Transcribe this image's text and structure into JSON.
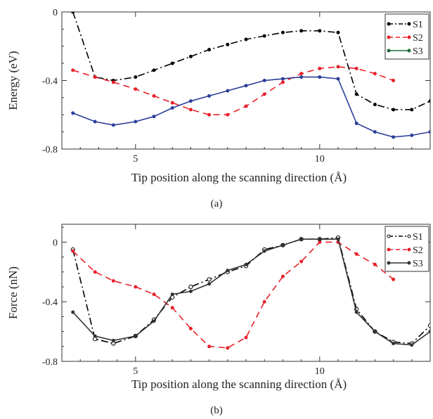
{
  "chart_data": [
    {
      "type": "line",
      "panel_label": "(a)",
      "xlabel": "Tip position along the scanning direction (Å)",
      "ylabel": "Energy (eV)",
      "xlim": [
        3.0,
        13.0
      ],
      "ylim": [
        -0.8,
        0.0
      ],
      "xticks": [
        5,
        10
      ],
      "yticks": [
        0,
        -0.4,
        -0.8
      ],
      "ytick_labels": [
        "0",
        "-0.4",
        "-0.8"
      ],
      "legend_position": "top-right",
      "series": [
        {
          "name": "S1",
          "color": "#000000",
          "dash": "dashdot",
          "marker": "dot",
          "x": [
            3.3,
            3.9,
            4.4,
            5.0,
            5.5,
            6.0,
            6.5,
            7.0,
            7.5,
            8.0,
            8.5,
            9.0,
            9.5,
            10.0,
            10.5,
            11.0,
            11.5,
            12.0,
            12.5,
            13.0
          ],
          "y": [
            0.0,
            -0.38,
            -0.4,
            -0.38,
            -0.34,
            -0.3,
            -0.26,
            -0.22,
            -0.19,
            -0.16,
            -0.14,
            -0.12,
            -0.11,
            -0.11,
            -0.12,
            -0.48,
            -0.54,
            -0.57,
            -0.57,
            -0.52
          ]
        },
        {
          "name": "S2",
          "color": "#e8202a",
          "dash": "dash",
          "marker": "dot",
          "x": [
            3.3,
            3.9,
            4.4,
            5.0,
            5.5,
            6.0,
            6.5,
            7.0,
            7.5,
            8.0,
            8.5,
            9.0,
            9.5,
            10.0,
            10.5,
            11.0,
            11.5,
            12.0
          ],
          "y": [
            -0.34,
            -0.38,
            -0.41,
            -0.45,
            -0.49,
            -0.53,
            -0.57,
            -0.6,
            -0.6,
            -0.55,
            -0.48,
            -0.41,
            -0.36,
            -0.33,
            -0.32,
            -0.33,
            -0.36,
            -0.4
          ]
        },
        {
          "name": "S3",
          "color": "#1f6b3a",
          "line_color": "#2b3f9a",
          "dash": "solid",
          "marker": "dot",
          "x": [
            3.3,
            3.9,
            4.4,
            5.0,
            5.5,
            6.0,
            6.5,
            7.0,
            7.5,
            8.0,
            8.5,
            9.0,
            9.5,
            10.0,
            10.5,
            11.0,
            11.5,
            12.0,
            12.5,
            13.0
          ],
          "y": [
            -0.59,
            -0.64,
            -0.66,
            -0.64,
            -0.61,
            -0.56,
            -0.52,
            -0.49,
            -0.46,
            -0.43,
            -0.4,
            -0.39,
            -0.38,
            -0.38,
            -0.39,
            -0.65,
            -0.7,
            -0.73,
            -0.72,
            -0.7
          ]
        }
      ]
    },
    {
      "type": "line",
      "panel_label": "(b)",
      "xlabel": "Tip position along the scanning direction (Å)",
      "ylabel": "Force (nN)",
      "xlim": [
        3.0,
        13.0
      ],
      "ylim": [
        -0.8,
        0.12
      ],
      "xticks": [
        5,
        10
      ],
      "yticks": [
        0,
        -0.4,
        -0.8
      ],
      "ytick_labels": [
        "0",
        "-0.4",
        "-0.8"
      ],
      "legend_position": "top-right",
      "series": [
        {
          "name": "S1",
          "color": "#000000",
          "dash": "dashdot",
          "marker": "open-circle",
          "x": [
            3.3,
            3.9,
            4.4,
            5.0,
            5.5,
            6.0,
            6.5,
            7.0,
            7.5,
            8.0,
            8.5,
            9.0,
            9.5,
            10.0,
            10.5,
            11.0,
            11.5,
            12.0,
            12.5,
            13.0
          ],
          "y": [
            -0.05,
            -0.65,
            -0.68,
            -0.63,
            -0.52,
            -0.37,
            -0.3,
            -0.25,
            -0.2,
            -0.16,
            -0.05,
            -0.02,
            0.02,
            0.02,
            0.03,
            -0.45,
            -0.6,
            -0.67,
            -0.68,
            -0.56
          ]
        },
        {
          "name": "S2",
          "color": "#e8202a",
          "dash": "dash",
          "marker": "dot",
          "x": [
            3.3,
            3.9,
            4.4,
            5.0,
            5.5,
            6.0,
            6.5,
            7.0,
            7.5,
            8.0,
            8.5,
            9.0,
            9.5,
            10.0,
            10.5,
            11.0,
            11.5,
            12.0
          ],
          "y": [
            -0.06,
            -0.2,
            -0.26,
            -0.3,
            -0.35,
            -0.44,
            -0.58,
            -0.7,
            -0.71,
            -0.64,
            -0.4,
            -0.23,
            -0.13,
            0.0,
            0.0,
            -0.08,
            -0.15,
            -0.25
          ]
        },
        {
          "name": "S3",
          "color": "#333333",
          "dash": "solid",
          "marker": "dot",
          "x": [
            3.3,
            3.9,
            4.4,
            5.0,
            5.5,
            6.0,
            6.5,
            7.0,
            7.5,
            8.0,
            8.5,
            9.0,
            9.5,
            10.0,
            10.5,
            11.0,
            11.5,
            12.0,
            12.5,
            13.0
          ],
          "y": [
            -0.47,
            -0.63,
            -0.66,
            -0.63,
            -0.53,
            -0.35,
            -0.33,
            -0.28,
            -0.19,
            -0.15,
            -0.06,
            -0.02,
            0.02,
            0.02,
            0.02,
            -0.47,
            -0.6,
            -0.68,
            -0.69,
            -0.6
          ]
        }
      ]
    }
  ]
}
